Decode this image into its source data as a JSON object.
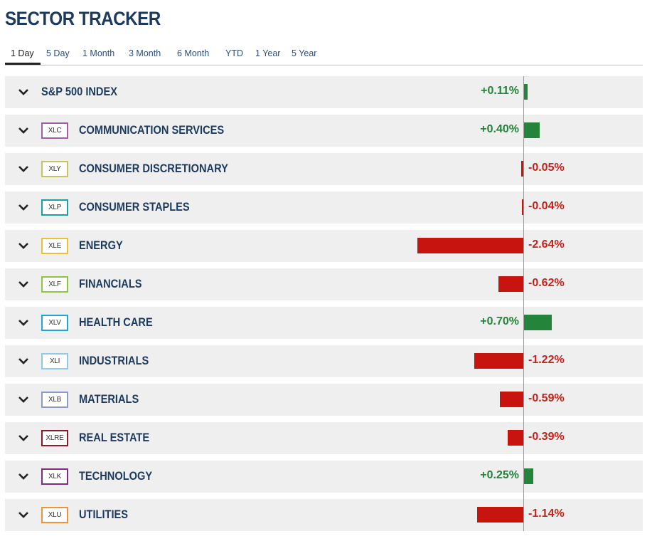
{
  "page": {
    "title": "SECTOR TRACKER"
  },
  "tabs": [
    {
      "label": "1 Day",
      "active": true
    },
    {
      "label": "5 Day",
      "active": false
    },
    {
      "label": "1 Month",
      "active": false
    },
    {
      "label": "3 Month",
      "active": false
    },
    {
      "label": "6 Month",
      "active": false
    },
    {
      "label": "YTD",
      "active": false
    },
    {
      "label": "1 Year",
      "active": false
    },
    {
      "label": "5 Year",
      "active": false
    }
  ],
  "colors": {
    "positive": "#24843a",
    "negative": "#c8140f",
    "positive_text": "#24843a",
    "negative_text": "#c0241b"
  },
  "rows": [
    {
      "ticker": "",
      "name": "S&P 500 INDEX",
      "change": 0.11,
      "change_label": "+0.11%",
      "ticker_color": ""
    },
    {
      "ticker": "XLC",
      "name": "COMMUNICATION SERVICES",
      "change": 0.4,
      "change_label": "+0.40%",
      "ticker_color": "#a15fa3"
    },
    {
      "ticker": "XLY",
      "name": "CONSUMER DISCRETIONARY",
      "change": -0.05,
      "change_label": "-0.05%",
      "ticker_color": "#c9c463"
    },
    {
      "ticker": "XLP",
      "name": "CONSUMER STAPLES",
      "change": -0.04,
      "change_label": "-0.04%",
      "ticker_color": "#1aa1a1"
    },
    {
      "ticker": "XLE",
      "name": "ENERGY",
      "change": -2.64,
      "change_label": "-2.64%",
      "ticker_color": "#e8c23a"
    },
    {
      "ticker": "XLF",
      "name": "FINANCIALS",
      "change": -0.62,
      "change_label": "-0.62%",
      "ticker_color": "#8ec63f"
    },
    {
      "ticker": "XLV",
      "name": "HEALTH CARE",
      "change": 0.7,
      "change_label": "+0.70%",
      "ticker_color": "#1fa7d4"
    },
    {
      "ticker": "XLI",
      "name": "INDUSTRIALS",
      "change": -1.22,
      "change_label": "-1.22%",
      "ticker_color": "#8fc8e8"
    },
    {
      "ticker": "XLB",
      "name": "MATERIALS",
      "change": -0.59,
      "change_label": "-0.59%",
      "ticker_color": "#8a9cc4"
    },
    {
      "ticker": "XLRE",
      "name": "REAL ESTATE",
      "change": -0.39,
      "change_label": "-0.39%",
      "ticker_color": "#8b1a2b"
    },
    {
      "ticker": "XLK",
      "name": "TECHNOLOGY",
      "change": 0.25,
      "change_label": "+0.25%",
      "ticker_color": "#7b2f7d"
    },
    {
      "ticker": "XLU",
      "name": "UTILITIES",
      "change": -1.14,
      "change_label": "-1.14%",
      "ticker_color": "#f0923a"
    }
  ]
}
